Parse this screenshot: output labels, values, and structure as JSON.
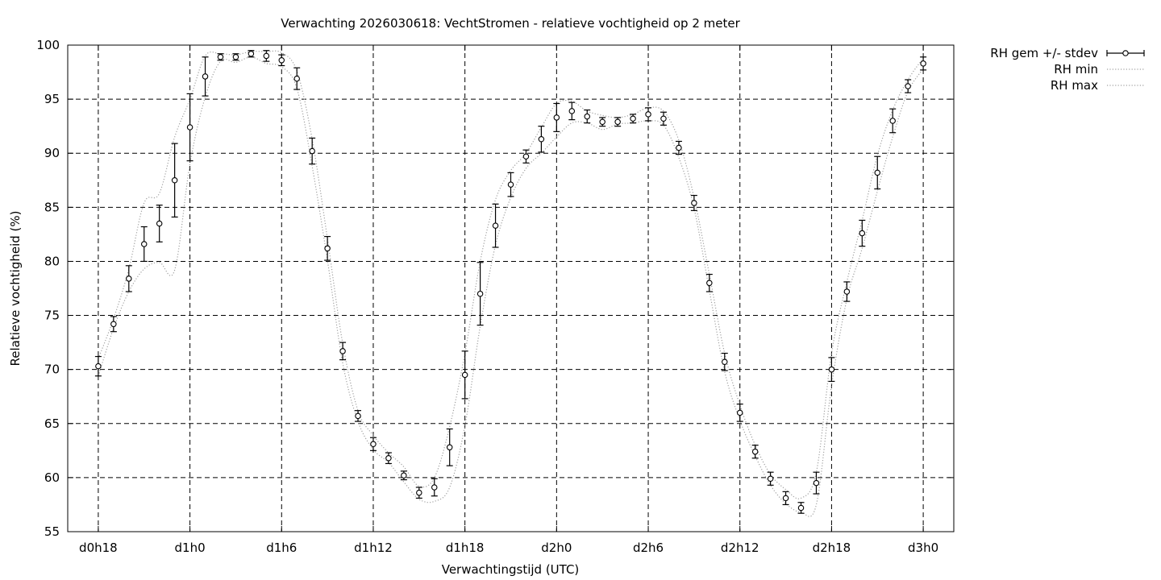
{
  "chart_data": {
    "type": "line",
    "title": "Verwachting 2026030618: VechtStromen - relatieve vochtigheid op 2 meter",
    "xlabel": "Verwachtingstijd (UTC)",
    "ylabel": "Relatieve vochtigheid (%)",
    "ylim": [
      55,
      100
    ],
    "yticks": [
      55,
      60,
      65,
      70,
      75,
      80,
      85,
      90,
      95,
      100
    ],
    "xlim": [
      16,
      74
    ],
    "xticks": [
      18,
      24,
      30,
      36,
      42,
      48,
      54,
      60,
      66,
      72
    ],
    "xtick_labels": [
      "d0h18",
      "d1h0",
      "d1h6",
      "d1h12",
      "d1h18",
      "d2h0",
      "d2h6",
      "d2h12",
      "d2h18",
      "d3h0"
    ],
    "grid": true,
    "legend_position": "outside-top-right",
    "x": [
      18,
      19,
      20,
      21,
      22,
      23,
      24,
      25,
      26,
      27,
      28,
      29,
      30,
      31,
      32,
      33,
      34,
      35,
      36,
      37,
      38,
      39,
      40,
      41,
      42,
      43,
      44,
      45,
      46,
      47,
      48,
      49,
      50,
      51,
      52,
      53,
      54,
      55,
      56,
      57,
      58,
      59,
      60,
      61,
      62,
      63,
      64,
      65,
      66,
      67,
      68,
      69,
      70,
      71,
      72
    ],
    "series": [
      {
        "name": "RH gem +/- stdev",
        "style": "points-errorbars",
        "color": "#000000",
        "values": [
          70.3,
          74.2,
          78.4,
          81.6,
          83.5,
          87.5,
          92.4,
          97.1,
          98.9,
          98.9,
          99.2,
          99.0,
          98.6,
          96.9,
          90.2,
          81.2,
          71.7,
          65.7,
          63.1,
          61.8,
          60.2,
          58.6,
          59.1,
          62.8,
          69.5,
          77.0,
          83.3,
          87.1,
          89.7,
          91.3,
          93.3,
          93.9,
          93.4,
          92.9,
          92.9,
          93.2,
          93.6,
          93.2,
          90.5,
          85.4,
          78.0,
          70.7,
          66.0,
          62.4,
          59.9,
          58.1,
          57.2,
          59.5,
          70.0,
          77.2,
          82.6,
          88.2,
          93.0,
          96.2,
          98.3
        ],
        "stdev": [
          0.9,
          0.7,
          1.2,
          1.6,
          1.7,
          3.4,
          3.1,
          1.8,
          0.3,
          0.3,
          0.3,
          0.5,
          0.5,
          1.0,
          1.2,
          1.1,
          0.8,
          0.5,
          0.6,
          0.5,
          0.4,
          0.5,
          0.8,
          1.7,
          2.2,
          2.9,
          2.0,
          1.1,
          0.6,
          1.2,
          1.3,
          0.8,
          0.6,
          0.4,
          0.4,
          0.4,
          0.6,
          0.6,
          0.6,
          0.7,
          0.8,
          0.8,
          0.8,
          0.6,
          0.6,
          0.6,
          0.5,
          1.0,
          1.1,
          0.9,
          1.2,
          1.5,
          1.1,
          0.6,
          0.6
        ]
      },
      {
        "name": "RH min",
        "style": "dotted-line",
        "color": "#a0a0a0",
        "values": [
          69.4,
          73.8,
          77.2,
          79.3,
          79.9,
          79.2,
          89.0,
          95.2,
          98.5,
          98.4,
          98.9,
          98.3,
          98.0,
          96.0,
          88.8,
          80.1,
          70.6,
          65.2,
          62.6,
          61.4,
          59.6,
          58.0,
          57.8,
          59.1,
          64.8,
          74.0,
          81.5,
          85.9,
          88.6,
          90.0,
          91.5,
          92.8,
          92.8,
          92.2,
          92.7,
          92.8,
          93.0,
          92.6,
          89.6,
          84.9,
          77.3,
          69.8,
          65.3,
          62.0,
          59.3,
          57.6,
          56.8,
          57.5,
          68.5,
          76.5,
          81.2,
          86.5,
          91.5,
          95.7,
          97.8
        ]
      },
      {
        "name": "RH max",
        "style": "dotted-line",
        "color": "#a0a0a0",
        "values": [
          71.0,
          74.7,
          79.3,
          85.4,
          86.3,
          91.5,
          95.0,
          99.0,
          99.2,
          99.1,
          99.4,
          99.4,
          99.3,
          97.6,
          91.3,
          82.1,
          72.4,
          66.2,
          63.9,
          62.3,
          61.0,
          59.2,
          60.0,
          64.7,
          71.5,
          80.0,
          85.7,
          88.4,
          90.0,
          92.4,
          94.6,
          94.8,
          93.9,
          93.5,
          93.3,
          93.6,
          94.2,
          93.9,
          91.2,
          85.9,
          78.8,
          71.5,
          66.7,
          63.0,
          60.3,
          58.9,
          58.1,
          60.5,
          71.5,
          78.1,
          83.8,
          89.8,
          94.0,
          96.8,
          98.8
        ]
      }
    ]
  }
}
